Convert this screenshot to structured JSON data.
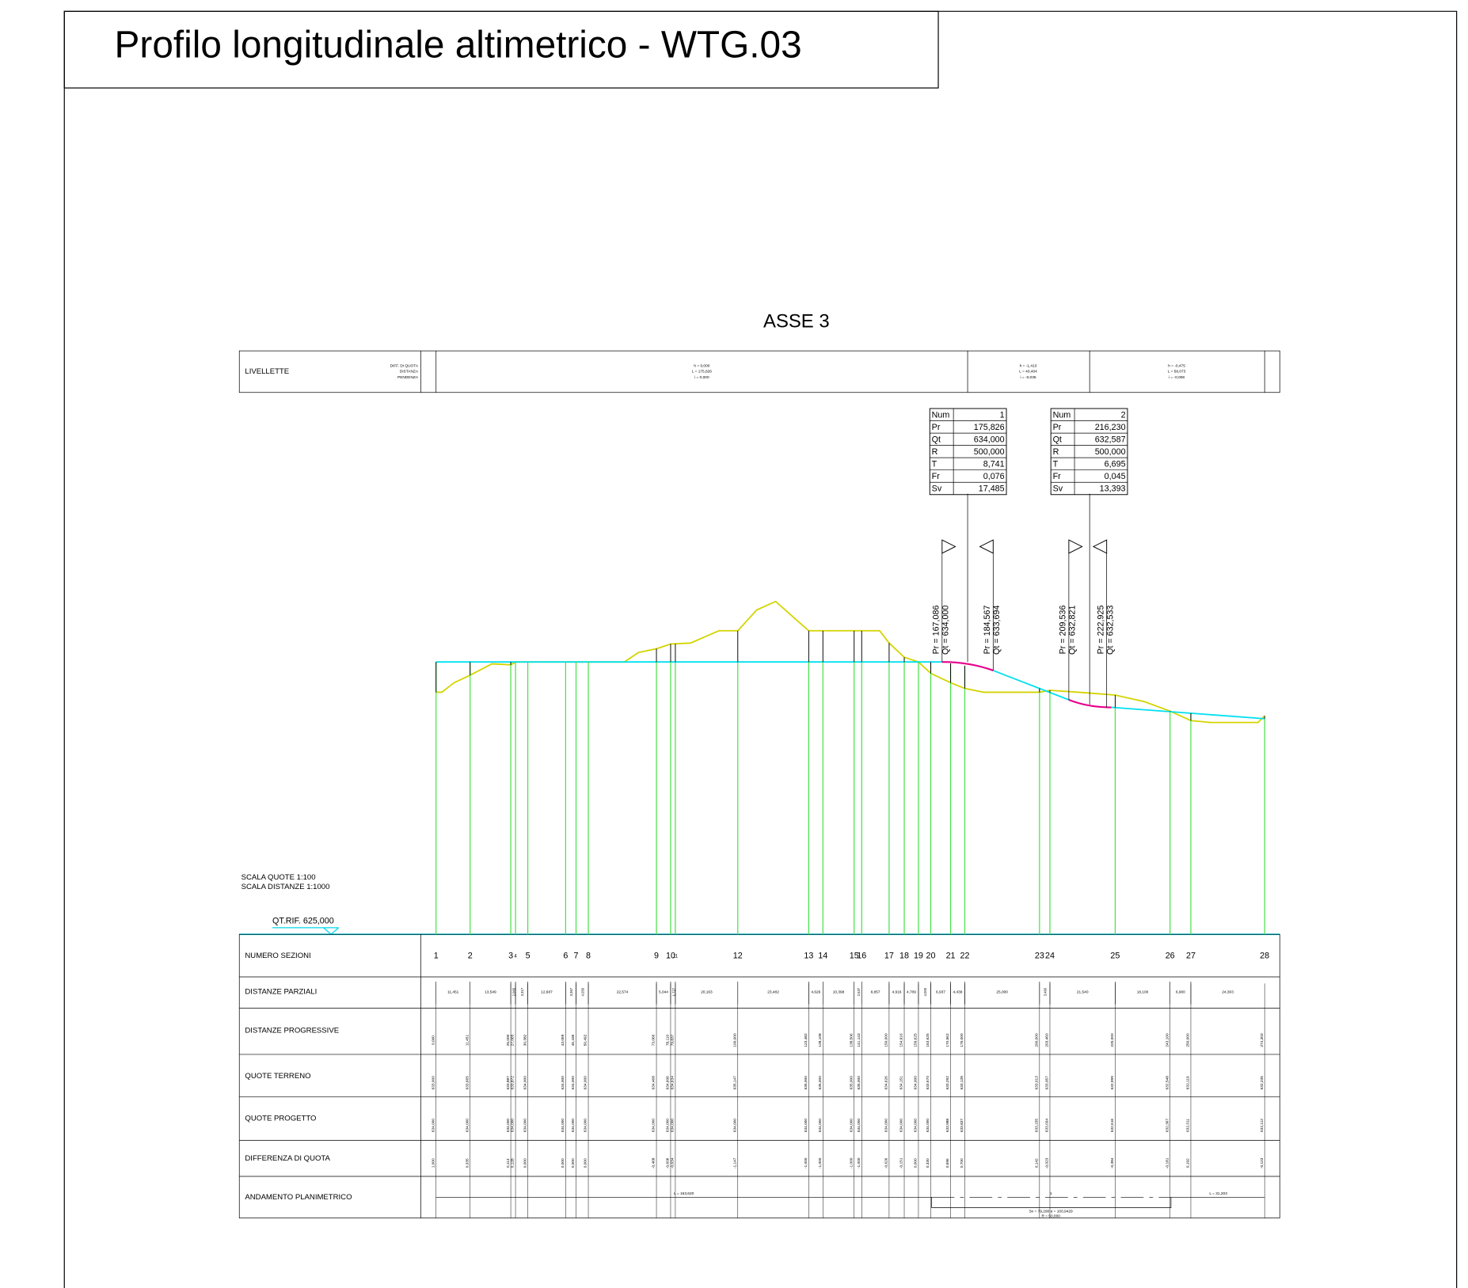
{
  "title": "Profilo longitudinale altimetrico - WTG.03",
  "axis_name": "ASSE 3",
  "livellette": {
    "label": "LIVELLETTE",
    "legend": [
      "DIFF. DI QUOTA",
      "DISTANZA",
      "PENDENZA"
    ],
    "segments": [
      [
        "h = 0,000",
        "L = 175,826",
        "i = 0,000"
      ],
      [
        "h = -1,413",
        "L = 40,404",
        "i = -0,035"
      ],
      [
        "h = -0,475",
        "L = 58,073",
        "i = -0,008"
      ]
    ]
  },
  "curves": [
    {
      "rows": [
        [
          "Num",
          "1"
        ],
        [
          "Pr",
          "175,826"
        ],
        [
          "Qt",
          "634,000"
        ],
        [
          "R",
          "500,000"
        ],
        [
          "T",
          "8,741"
        ],
        [
          "Fr",
          "0,076"
        ],
        [
          "Sv",
          "17,485"
        ]
      ]
    },
    {
      "rows": [
        [
          "Num",
          "2"
        ],
        [
          "Pr",
          "216,230"
        ],
        [
          "Qt",
          "632,587"
        ],
        [
          "R",
          "500,000"
        ],
        [
          "T",
          "6,695"
        ],
        [
          "Fr",
          "0,045"
        ],
        [
          "Sv",
          "13,393"
        ]
      ]
    }
  ],
  "vertices": [
    [
      "Pr = 167,086",
      "Qt = 634,000"
    ],
    [
      "Pr = 184,567",
      "Qt = 633,694"
    ],
    [
      "Pr = 209,536",
      "Qt = 632,821"
    ],
    [
      "Pr = 222,925",
      "Qt = 632,533"
    ]
  ],
  "scale": [
    "SCALA QUOTE 1:100",
    "SCALA DISTANZE 1:1000"
  ],
  "reference": "QT.RIF. 625,000",
  "table": {
    "row_labels": [
      "NUMERO SEZIONI",
      "DISTANZE PARZIALI",
      "DISTANZE PROGRESSIVE",
      "QUOTE TERRENO",
      "QUOTE PROGETTO",
      "DIFFERENZA DI QUOTA",
      "ANDAMENTO PLANIMETRICO"
    ],
    "sections": [
      "1",
      "2",
      "3",
      "4",
      "5",
      "6",
      "7",
      "8",
      "9",
      "10",
      "11",
      "12",
      "13",
      "14",
      "15",
      "16",
      "17",
      "18",
      "19",
      "20",
      "21",
      "22",
      "23",
      "24",
      "25",
      "26",
      "27",
      "28"
    ],
    "partial": [
      "11,451",
      "13,549",
      "2,065",
      "3,317",
      "12,687",
      "3,367",
      "4,056",
      "22,574",
      "5,044",
      "1,727",
      "20,163",
      "23,482",
      "4,626",
      "10,398",
      "2,637",
      "8,857",
      "4,916",
      "4,709",
      "4,000",
      "6,937",
      "4,438",
      "25,000",
      "3,460",
      "21,540",
      "18,100",
      "6,900",
      "24,303"
    ],
    "progressive": [
      "0,000",
      "11,451",
      "25,000",
      "27,065",
      "30,382",
      "43,069",
      "46,436",
      "50,492",
      "73,066",
      "78,110",
      "79,837",
      "100,000",
      "123,482",
      "128,108",
      "138,506",
      "141,143",
      "150,000",
      "154,916",
      "159,625",
      "163,625",
      "170,562",
      "175,000",
      "200,000",
      "203,460",
      "225,000",
      "243,100",
      "250,000",
      "274,303"
    ],
    "terreno": [
      "633,000",
      "633,665",
      "633,887",
      "633,872",
      "634,000",
      "634,000",
      "634,000",
      "634,000",
      "634,468",
      "634,606",
      "634,634",
      "635,147",
      "635,000",
      "635,000",
      "635,000",
      "635,000",
      "634,626",
      "634,151",
      "634,000",
      "633,670",
      "633,292",
      "633,139",
      "633,013",
      "633,057",
      "632,999",
      "632,548",
      "632,119",
      "632,235"
    ],
    "progetto": [
      "634,000",
      "634,000",
      "634,000",
      "634,000",
      "634,000",
      "634,000",
      "634,000",
      "634,000",
      "634,000",
      "634,000",
      "634,000",
      "634,000",
      "634,000",
      "634,000",
      "634,000",
      "634,000",
      "634,000",
      "634,000",
      "634,000",
      "634,000",
      "633,988",
      "633,837",
      "633,155",
      "633,034",
      "632,616",
      "632,367",
      "632,311",
      "632,112"
    ],
    "differenza": [
      "1,000",
      "0,335",
      "0,113",
      "0,128",
      "0,000",
      "0,000",
      "0,000",
      "0,000",
      "-0,468",
      "-0,606",
      "-0,634",
      "-1,147",
      "-1,000",
      "-1,000",
      "-1,000",
      "-1,000",
      "-0,626",
      "-0,151",
      "0,000",
      "0,330",
      "0,696",
      "0,700",
      "0,142",
      "-0,023",
      "-0,384",
      "-0,181",
      "0,192",
      "-0,123"
    ]
  },
  "planimetrico": {
    "labels": [
      "L = 163,620",
      "1",
      "Sv = 79,290  α = 100,9429",
      "R = 50,000",
      "L = 31,203"
    ]
  }
}
